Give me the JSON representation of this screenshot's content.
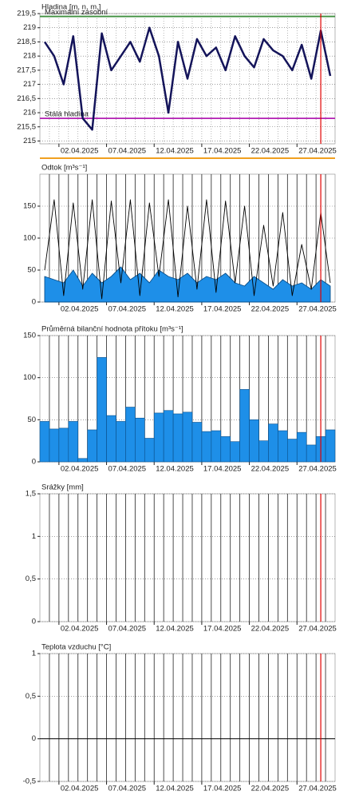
{
  "chart_data": [
    {
      "type": "line",
      "title": "Hladina [m. n. m.]",
      "x": [
        "31.03.2025",
        "01.04.2025",
        "02.04.2025",
        "03.04.2025",
        "04.04.2025",
        "05.04.2025",
        "06.04.2025",
        "07.04.2025",
        "08.04.2025",
        "09.04.2025",
        "10.04.2025",
        "11.04.2025",
        "12.04.2025",
        "13.04.2025",
        "14.04.2025",
        "15.04.2025",
        "16.04.2025",
        "17.04.2025",
        "18.04.2025",
        "19.04.2025",
        "20.04.2025",
        "21.04.2025",
        "22.04.2025",
        "23.04.2025",
        "24.04.2025",
        "25.04.2025",
        "26.04.2025",
        "27.04.2025",
        "28.04.2025",
        "29.04.2025",
        "30.04.2025"
      ],
      "series": [
        {
          "color": "#14145a",
          "values": [
            218.5,
            218.0,
            217.0,
            218.7,
            215.8,
            215.4,
            218.8,
            217.5,
            218.0,
            218.5,
            217.8,
            219.0,
            218.0,
            216.0,
            218.5,
            217.2,
            218.6,
            218.0,
            218.3,
            217.5,
            218.7,
            218.0,
            217.6,
            218.6,
            218.2,
            218.0,
            217.5,
            218.4,
            217.2,
            218.9,
            217.3
          ]
        }
      ],
      "reference_lines": [
        {
          "label": "Maximální zásobní",
          "value": 219.4,
          "color": "#3f8f3f"
        },
        {
          "label": "Stálá hladina",
          "value": 215.8,
          "color": "#b21fb2"
        }
      ],
      "xlim": [
        "31.03.2025",
        "30.04.2025"
      ],
      "xticks": [
        "02.04.2025",
        "07.04.2025",
        "12.04.2025",
        "17.04.2025",
        "22.04.2025",
        "27.04.2025"
      ],
      "ylim": [
        214.9,
        219.5
      ],
      "yticks": [
        215,
        {
          "value": 215.5,
          "label": "215,5"
        },
        216,
        {
          "value": 216.5,
          "label": "216,5"
        },
        217,
        {
          "value": 217.5,
          "label": "217,5"
        },
        218,
        {
          "value": 218.5,
          "label": "218,5"
        },
        219,
        {
          "value": 219.5,
          "label": "219,5"
        }
      ],
      "day_grid": "dotted",
      "now_marker": "29.04.2025"
    },
    {
      "type": "line",
      "title": "Odtok [m³s⁻¹]",
      "x": [
        "31.03.2025",
        "01.04.2025",
        "02.04.2025",
        "03.04.2025",
        "04.04.2025",
        "05.04.2025",
        "06.04.2025",
        "07.04.2025",
        "08.04.2025",
        "09.04.2025",
        "10.04.2025",
        "11.04.2025",
        "12.04.2025",
        "13.04.2025",
        "14.04.2025",
        "15.04.2025",
        "16.04.2025",
        "17.04.2025",
        "18.04.2025",
        "19.04.2025",
        "20.04.2025",
        "21.04.2025",
        "22.04.2025",
        "23.04.2025",
        "24.04.2025",
        "25.04.2025",
        "26.04.2025",
        "27.04.2025",
        "28.04.2025",
        "29.04.2025",
        "30.04.2025"
      ],
      "series": [
        {
          "color": "#1e8fe8",
          "fill": true,
          "values": [
            40,
            35,
            30,
            50,
            25,
            45,
            30,
            40,
            55,
            35,
            45,
            30,
            50,
            40,
            35,
            45,
            30,
            40,
            35,
            45,
            30,
            25,
            40,
            30,
            20,
            35,
            25,
            30,
            20,
            35,
            25
          ]
        },
        {
          "color": "#000000",
          "fill": false,
          "values": [
            50,
            160,
            10,
            155,
            20,
            160,
            5,
            158,
            30,
            160,
            10,
            155,
            40,
            160,
            8,
            150,
            20,
            160,
            15,
            158,
            30,
            150,
            10,
            120,
            25,
            140,
            10,
            90,
            20,
            140,
            30
          ]
        }
      ],
      "xlim": [
        "31.03.2025",
        "30.04.2025"
      ],
      "xticks": [
        "02.04.2025",
        "07.04.2025",
        "12.04.2025",
        "17.04.2025",
        "22.04.2025",
        "27.04.2025"
      ],
      "ylim": [
        0,
        200
      ],
      "yticks": [
        0,
        50,
        100,
        150
      ],
      "day_grid": "solid",
      "now_marker": "29.04.2025"
    },
    {
      "type": "bar",
      "title": "Průměrná bilanční hodnota přítoku   [m³s⁻¹]",
      "x": [
        "31.03.2025",
        "01.04.2025",
        "02.04.2025",
        "03.04.2025",
        "04.04.2025",
        "05.04.2025",
        "06.04.2025",
        "07.04.2025",
        "08.04.2025",
        "09.04.2025",
        "10.04.2025",
        "11.04.2025",
        "12.04.2025",
        "13.04.2025",
        "14.04.2025",
        "15.04.2025",
        "16.04.2025",
        "17.04.2025",
        "18.04.2025",
        "19.04.2025",
        "20.04.2025",
        "21.04.2025",
        "22.04.2025",
        "23.04.2025",
        "24.04.2025",
        "25.04.2025",
        "26.04.2025",
        "27.04.2025",
        "28.04.2025",
        "29.04.2025",
        "30.04.2025"
      ],
      "series": [
        {
          "color": "#1e8fe8",
          "values": [
            48,
            39,
            40,
            48,
            4,
            38,
            124,
            55,
            48,
            65,
            52,
            28,
            58,
            61,
            57,
            59,
            47,
            36,
            37,
            30,
            24,
            86,
            50,
            25,
            45,
            37,
            27,
            35,
            20,
            30,
            38
          ]
        }
      ],
      "xlim": [
        "31.03.2025",
        "30.04.2025"
      ],
      "xticks": [
        "02.04.2025",
        "07.04.2025",
        "12.04.2025",
        "17.04.2025",
        "22.04.2025",
        "27.04.2025"
      ],
      "ylim": [
        0,
        150
      ],
      "yticks": [
        0,
        50,
        100,
        150
      ],
      "day_grid": "solid",
      "now_marker": "29.04.2025"
    },
    {
      "type": "bar",
      "title": "Srážky [mm]",
      "xlim": [
        "31.03.2025",
        "30.04.2025"
      ],
      "xticks": [
        "02.04.2025",
        "07.04.2025",
        "12.04.2025",
        "17.04.2025",
        "22.04.2025",
        "27.04.2025"
      ],
      "ylim": [
        0,
        1.5
      ],
      "yticks": [
        0,
        {
          "value": 0.5,
          "label": "0,5"
        },
        1,
        {
          "value": 1.5,
          "label": "1,5"
        }
      ],
      "day_grid": "solid",
      "now_marker": "29.04.2025"
    },
    {
      "type": "line",
      "title": "Teplota vzduchu [°C]",
      "xlim": [
        "31.03.2025",
        "30.04.2025"
      ],
      "xticks": [
        "02.04.2025",
        "07.04.2025",
        "12.04.2025",
        "17.04.2025",
        "22.04.2025",
        "27.04.2025"
      ],
      "ylim": [
        -0.5,
        1
      ],
      "yticks": [
        {
          "value": -0.5,
          "label": "-0,5"
        },
        0,
        {
          "value": 0.5,
          "label": "0,5"
        },
        1
      ],
      "day_grid": "solid",
      "zero_line": true,
      "now_marker": "29.04.2025"
    }
  ]
}
